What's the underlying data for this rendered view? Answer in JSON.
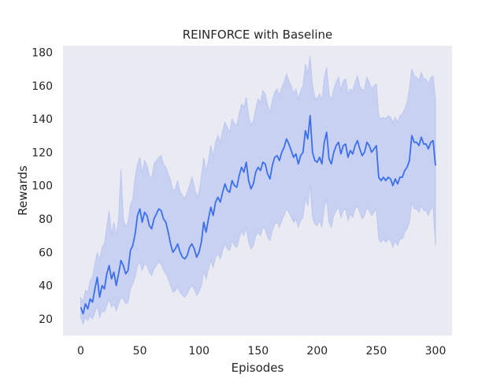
{
  "chart_data": {
    "type": "line",
    "title": "REINFORCE with Baseline",
    "xlabel": "Episodes",
    "ylabel": "Rewards",
    "xlim": [
      -15,
      314
    ],
    "ylim": [
      10,
      184
    ],
    "xticks": [
      0,
      50,
      100,
      150,
      200,
      250,
      300
    ],
    "yticks": [
      20,
      40,
      60,
      80,
      100,
      120,
      140,
      160,
      180
    ],
    "grid": false,
    "legend": "none",
    "colors": {
      "line": "#3a6ff2",
      "band": "#bcc8f0",
      "background": "#eaeaf2"
    },
    "series": [
      {
        "x": [
          0,
          2,
          4,
          6,
          8,
          10,
          12,
          14,
          16,
          18,
          20,
          22,
          24,
          26,
          28,
          30,
          32,
          34,
          36,
          38,
          40,
          42,
          44,
          46,
          48,
          50,
          52,
          54,
          56,
          58,
          60,
          62,
          64,
          66,
          68,
          70,
          72,
          74,
          76,
          78,
          80,
          82,
          84,
          86,
          88,
          90,
          92,
          94,
          96,
          98,
          100,
          102,
          104,
          106,
          108,
          110,
          112,
          114,
          116,
          118,
          120,
          122,
          124,
          126,
          128,
          130,
          132,
          134,
          136,
          138,
          140,
          142,
          144,
          146,
          148,
          150,
          152,
          154,
          156,
          158,
          160,
          162,
          164,
          166,
          168,
          170,
          172,
          174,
          176,
          178,
          180,
          182,
          184,
          186,
          188,
          190,
          192,
          194,
          196,
          198,
          200,
          202,
          204,
          206,
          208,
          210,
          212,
          214,
          216,
          218,
          220,
          222,
          224,
          226,
          228,
          230,
          232,
          234,
          236,
          238,
          240,
          242,
          244,
          246,
          248,
          250,
          252,
          254,
          256,
          258,
          260,
          262,
          264,
          266,
          268,
          270,
          272,
          274,
          276,
          278,
          280,
          282,
          284,
          286,
          288,
          290,
          292,
          294,
          296,
          298,
          300
        ],
        "mean": [
          27,
          23,
          29,
          26,
          32,
          30,
          38,
          45,
          33,
          40,
          38,
          47,
          52,
          44,
          48,
          40,
          47,
          55,
          52,
          47,
          49,
          61,
          64,
          71,
          82,
          86,
          78,
          84,
          82,
          76,
          74,
          80,
          83,
          86,
          85,
          80,
          78,
          72,
          65,
          60,
          62,
          65,
          60,
          57,
          56,
          58,
          63,
          65,
          62,
          57,
          60,
          66,
          78,
          72,
          80,
          87,
          82,
          90,
          93,
          90,
          96,
          101,
          97,
          96,
          103,
          100,
          99,
          106,
          111,
          108,
          114,
          103,
          98,
          101,
          108,
          111,
          109,
          114,
          113,
          107,
          104,
          112,
          117,
          118,
          115,
          120,
          123,
          128,
          125,
          121,
          117,
          119,
          113,
          118,
          120,
          133,
          128,
          142,
          120,
          115,
          114,
          117,
          113,
          126,
          132,
          116,
          113,
          120,
          124,
          126,
          119,
          124,
          125,
          117,
          121,
          119,
          124,
          127,
          122,
          118,
          120,
          126,
          124,
          120,
          122,
          124,
          105,
          103,
          105,
          103,
          105,
          104,
          100,
          104,
          101,
          105,
          105,
          109,
          111,
          115,
          130,
          126,
          126,
          124,
          129,
          125,
          125,
          122,
          126,
          127,
          112
        ],
        "upper": [
          33,
          30,
          37,
          36,
          43,
          45,
          53,
          60,
          55,
          63,
          65,
          75,
          85,
          70,
          78,
          70,
          80,
          110,
          80,
          75,
          78,
          88,
          92,
          105,
          113,
          117,
          107,
          115,
          112,
          106,
          104,
          113,
          115,
          117,
          118,
          113,
          111,
          107,
          103,
          97,
          98,
          103,
          96,
          94,
          92,
          96,
          100,
          105,
          100,
          93,
          96,
          105,
          117,
          108,
          115,
          124,
          117,
          126,
          130,
          126,
          133,
          138,
          135,
          132,
          140,
          137,
          136,
          143,
          149,
          147,
          153,
          142,
          136,
          139,
          146,
          152,
          150,
          157,
          155,
          148,
          144,
          151,
          156,
          158,
          154,
          159,
          162,
          167,
          163,
          160,
          155,
          158,
          152,
          157,
          160,
          173,
          167,
          178,
          160,
          153,
          152,
          155,
          151,
          165,
          171,
          155,
          151,
          158,
          162,
          165,
          157,
          163,
          164,
          155,
          158,
          157,
          162,
          166,
          160,
          157,
          158,
          165,
          162,
          158,
          160,
          161,
          142,
          140,
          141,
          140,
          142,
          141,
          138,
          141,
          138,
          142,
          143,
          146,
          150,
          158,
          170,
          166,
          165,
          163,
          168,
          164,
          164,
          161,
          165,
          166,
          152
        ],
        "lower": [
          21,
          17,
          21,
          19,
          22,
          20,
          24,
          28,
          21,
          25,
          24,
          28,
          32,
          27,
          29,
          25,
          29,
          33,
          32,
          29,
          30,
          38,
          41,
          45,
          52,
          54,
          49,
          53,
          52,
          48,
          46,
          50,
          52,
          54,
          53,
          49,
          47,
          44,
          40,
          36,
          37,
          39,
          36,
          34,
          33,
          35,
          38,
          40,
          38,
          34,
          36,
          40,
          49,
          44,
          50,
          55,
          51,
          57,
          59,
          56,
          61,
          65,
          62,
          61,
          67,
          64,
          63,
          68,
          73,
          70,
          75,
          66,
          62,
          64,
          70,
          72,
          70,
          75,
          74,
          69,
          67,
          73,
          77,
          78,
          75,
          79,
          82,
          86,
          84,
          81,
          78,
          80,
          75,
          79,
          81,
          93,
          88,
          101,
          81,
          77,
          76,
          79,
          75,
          87,
          92,
          78,
          75,
          82,
          85,
          87,
          81,
          85,
          86,
          79,
          83,
          81,
          86,
          88,
          84,
          80,
          82,
          87,
          85,
          82,
          84,
          86,
          68,
          66,
          68,
          66,
          68,
          67,
          63,
          67,
          64,
          68,
          68,
          72,
          74,
          78,
          90,
          86,
          86,
          84,
          88,
          85,
          85,
          82,
          86,
          87,
          64
        ]
      }
    ]
  }
}
